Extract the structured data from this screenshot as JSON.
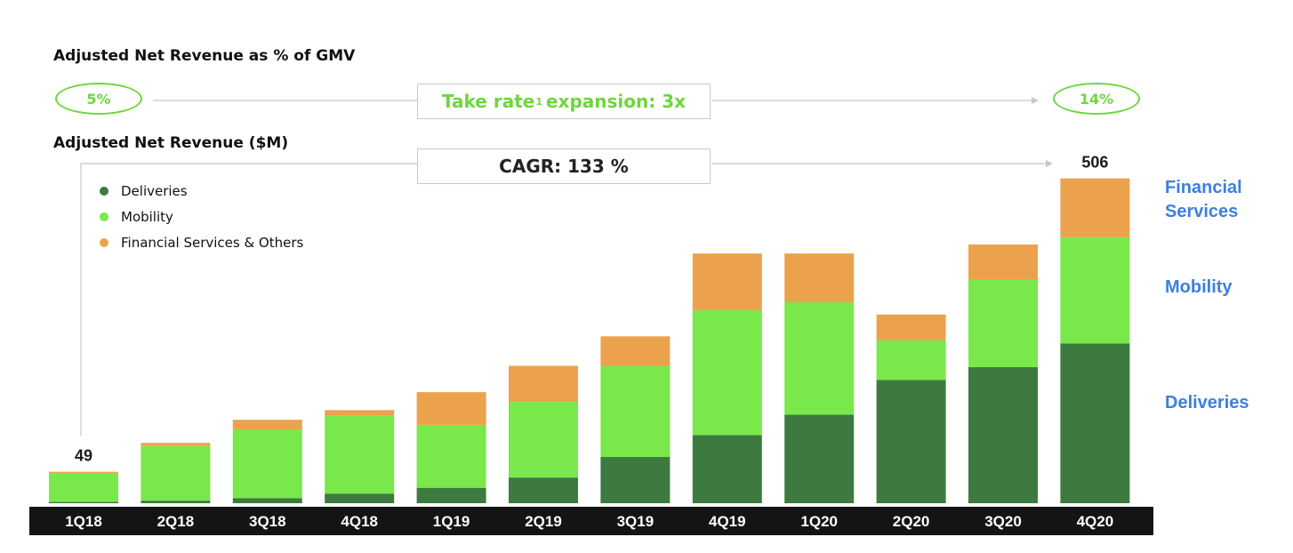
{
  "headings": {
    "pct_of_gmv": "Adjusted Net Revenue as % of GMV",
    "net_revenue": "Adjusted Net Revenue ($M)"
  },
  "take_rate": {
    "start": "5%",
    "end": "14%",
    "label_before_sup": "Take rate",
    "sup": "1",
    "label_after_sup": "expansion: 3x"
  },
  "cagr": {
    "label": "CAGR: 133 %"
  },
  "legend": [
    {
      "label": "Deliveries",
      "color": "#3d7a3f"
    },
    {
      "label": "Mobility",
      "color": "#79e84a"
    },
    {
      "label": "Financial Services & Others",
      "color": "#eca24c"
    }
  ],
  "side_labels": {
    "financial_services": "Financial Services",
    "mobility": "Mobility",
    "deliveries": "Deliveries"
  },
  "chart_data": {
    "type": "bar",
    "stacked": true,
    "ylabel": "Adjusted Net Revenue ($M)",
    "categories": [
      "1Q18",
      "2Q18",
      "3Q18",
      "4Q18",
      "1Q19",
      "2Q19",
      "3Q19",
      "4Q19",
      "1Q20",
      "2Q20",
      "3Q20",
      "4Q20"
    ],
    "series": [
      {
        "name": "Deliveries",
        "color": "#3d7a3f",
        "values": [
          2,
          4,
          8,
          15,
          24,
          40,
          72,
          106,
          138,
          192,
          212,
          249
        ]
      },
      {
        "name": "Mobility",
        "color": "#79e84a",
        "values": [
          45,
          85,
          107,
          121,
          98,
          118,
          142,
          195,
          175,
          62,
          137,
          165
        ]
      },
      {
        "name": "Financial Services & Others",
        "color": "#eca24c",
        "values": [
          2,
          5,
          15,
          9,
          51,
          56,
          46,
          88,
          76,
          40,
          54,
          92
        ]
      }
    ],
    "data_labels": {
      "1Q18": "49",
      "4Q20": "506"
    },
    "ylim": [
      0,
      520
    ],
    "grid": false,
    "legend_position": "top-left"
  }
}
